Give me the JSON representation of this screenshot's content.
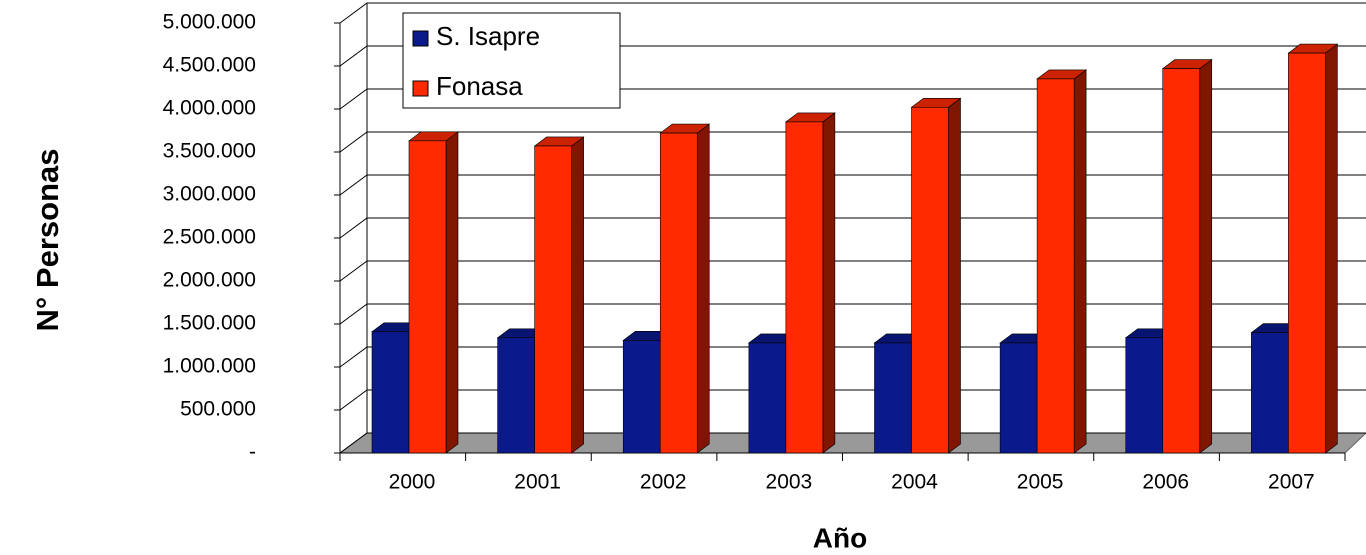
{
  "chart_data": {
    "type": "bar3d",
    "x_label": "Año",
    "y_label": "N° Personas",
    "categories": [
      "2000",
      "2001",
      "2002",
      "2003",
      "2004",
      "2005",
      "2006",
      "2007"
    ],
    "series": [
      {
        "name": "S. Isapre",
        "color": "#0a1a8c",
        "values": [
          1410000,
          1340000,
          1310000,
          1280000,
          1280000,
          1280000,
          1340000,
          1400000
        ]
      },
      {
        "name": "Fonasa",
        "color": "#ff2a00",
        "values": [
          3630000,
          3570000,
          3720000,
          3850000,
          4020000,
          4350000,
          4470000,
          4650000
        ]
      }
    ],
    "ylim": [
      0,
      5000000
    ],
    "yticks": [
      {
        "value": 0,
        "label": "-"
      },
      {
        "value": 500000,
        "label": "500.000"
      },
      {
        "value": 1000000,
        "label": "1.000.000"
      },
      {
        "value": 1500000,
        "label": "1.500.000"
      },
      {
        "value": 2000000,
        "label": "2.000.000"
      },
      {
        "value": 2500000,
        "label": "2.500.000"
      },
      {
        "value": 3000000,
        "label": "3.000.000"
      },
      {
        "value": 3500000,
        "label": "3.500.000"
      },
      {
        "value": 4000000,
        "label": "4.000.000"
      },
      {
        "value": 4500000,
        "label": "4.500.000"
      },
      {
        "value": 5000000,
        "label": "5.000.000"
      }
    ],
    "grid": true,
    "legend": "top-left"
  }
}
